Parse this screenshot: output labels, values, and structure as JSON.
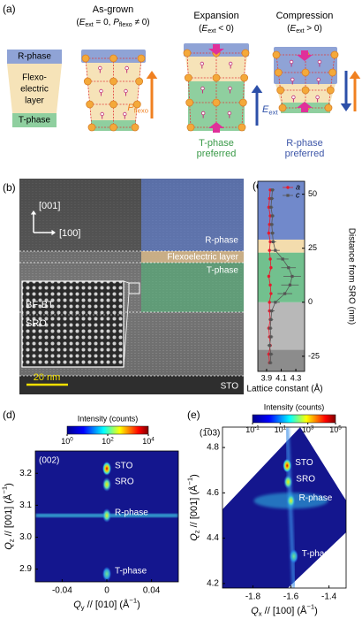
{
  "panel_a": {
    "label": "(a)",
    "legend": {
      "r_phase": "R-phase",
      "layer": [
        "Flexo-",
        "electric",
        "layer"
      ],
      "t_phase": "T-phase"
    },
    "as_grown": {
      "title": "As-grown",
      "condition": [
        "(",
        {
          "i": "E"
        },
        {
          "sub": "ext"
        },
        " = 0, ",
        {
          "i": "P"
        },
        {
          "sub": "flexo"
        },
        " ≠ 0)"
      ],
      "arrow": [
        {
          "i": "P"
        },
        {
          "sub": "flexo"
        }
      ]
    },
    "expansion": {
      "title": "Expansion",
      "condition": [
        "(",
        {
          "i": "E"
        },
        {
          "sub": "ext"
        },
        " < 0)"
      ],
      "arrow": [
        {
          "i": "E"
        },
        {
          "sub": "ext"
        }
      ],
      "result": [
        "T-phase",
        "preferred"
      ]
    },
    "compression": {
      "title": "Compression",
      "condition": [
        "(",
        {
          "i": "E"
        },
        {
          "sub": "ext"
        },
        " > 0)"
      ],
      "result": [
        "R-phase",
        "preferred"
      ]
    }
  },
  "panel_b": {
    "label": "(b)",
    "axes": [
      "[001]",
      "[100]"
    ],
    "regions": [
      "R-phase",
      "Flexoelectric layer",
      "T-phase"
    ],
    "inset": [
      "BF-BT",
      "SRO"
    ],
    "scale_bar": "20 nm",
    "substrate": "STO"
  },
  "chart_data": [
    {
      "type": "line",
      "panel": "(c)",
      "xlabel": "Lattice constant (Å)",
      "ylabel": "Distance from SRO (nm)",
      "y": [
        -28,
        -24,
        -20,
        -16,
        -12,
        -8,
        -4,
        0,
        4,
        8,
        12,
        16,
        20,
        24,
        28,
        32,
        36,
        40,
        44,
        48,
        52
      ],
      "series": [
        {
          "name": "a",
          "color": "#e8192c",
          "marker": "circle",
          "values": [
            3.94,
            3.93,
            3.95,
            3.94,
            3.93,
            3.95,
            3.94,
            3.94,
            3.96,
            3.95,
            3.93,
            3.96,
            3.95,
            3.94,
            3.95,
            3.93,
            3.94,
            3.95,
            3.93,
            3.94,
            3.95
          ]
        },
        {
          "name": "c",
          "color": "#555555",
          "marker": "square",
          "values": [
            3.95,
            3.96,
            3.94,
            3.96,
            3.95,
            3.96,
            3.97,
            4.02,
            4.15,
            4.22,
            4.25,
            4.2,
            4.12,
            4.02,
            3.99,
            3.98,
            3.97,
            3.98,
            3.96,
            3.97,
            3.98
          ],
          "errors": [
            0.03,
            0.03,
            0.03,
            0.03,
            0.03,
            0.03,
            0.04,
            0.06,
            0.1,
            0.12,
            0.12,
            0.1,
            0.08,
            0.06,
            0.04,
            0.03,
            0.03,
            0.03,
            0.03,
            0.03,
            0.03
          ]
        }
      ],
      "xlim": [
        3.78,
        4.42
      ],
      "xticks": [
        3.9,
        4.1,
        4.3
      ],
      "ylim": [
        -32,
        56
      ],
      "yticks": [
        -25,
        0,
        25,
        50
      ],
      "bands": [
        {
          "from": -32,
          "to": -22,
          "color": "#8c8c8c"
        },
        {
          "from": -22,
          "to": 0,
          "color": "#b8b8b8"
        },
        {
          "from": 0,
          "to": 23,
          "color": "#72c08e"
        },
        {
          "from": 23,
          "to": 29,
          "color": "#f3dcad"
        },
        {
          "from": 29,
          "to": 56,
          "color": "#7189cb"
        }
      ]
    },
    {
      "type": "heatmap",
      "panel": "(d)",
      "label": "(002)",
      "xlabel": [
        {
          "i": "Q"
        },
        {
          "sub": "y"
        },
        " // [010] (Å",
        {
          "sup": "−1"
        },
        ")"
      ],
      "ylabel": [
        {
          "i": "Q"
        },
        {
          "sub": "z"
        },
        " // [001] (Å",
        {
          "sup": "−1"
        },
        ")"
      ],
      "xlim": [
        -0.064,
        0.064
      ],
      "xticks": [
        -0.04,
        0,
        0.04
      ],
      "ylim": [
        2.86,
        3.27
      ],
      "yticks": [
        2.9,
        {
          "value": 3,
          "label": "3.0"
        },
        3.1,
        3.2
      ],
      "colorbar": {
        "title": "Intensity (counts)",
        "log": true,
        "lim": [
          1,
          10000
        ],
        "ticks": [
          {
            "value": 1,
            "label": [
              "10",
              {
                "sup": "0"
              }
            ]
          },
          {
            "value": 100,
            "label": [
              "10",
              {
                "sup": "2"
              }
            ]
          },
          {
            "value": 10000,
            "label": [
              "10",
              {
                "sup": "4"
              }
            ]
          }
        ]
      },
      "peaks": [
        {
          "name": "STO",
          "qx": 0,
          "qz": 3.215
        },
        {
          "name": "SRO",
          "qx": 0,
          "qz": 3.165
        },
        {
          "name": "R-phase",
          "qx": 0,
          "qz": 3.068
        },
        {
          "name": "T-phase",
          "qx": 0,
          "qz": 2.885
        }
      ]
    },
    {
      "type": "heatmap",
      "panel": "(e)",
      "label": "(1̅03)",
      "xlabel": [
        {
          "i": "Q"
        },
        {
          "sub": "x"
        },
        " // [100] (Å",
        {
          "sup": "−1"
        },
        ")"
      ],
      "ylabel": [
        {
          "i": "Q"
        },
        {
          "sub": "z"
        },
        " // [001] (Å",
        {
          "sup": "−1"
        },
        ")"
      ],
      "xlim": [
        -1.96,
        -1.31
      ],
      "xticks": [
        -1.8,
        -1.6,
        -1.4
      ],
      "ylim": [
        4.18,
        4.89
      ],
      "yticks": [
        4.2,
        4.4,
        4.6,
        4.8
      ],
      "colorbar": {
        "title": "Intensity (counts)",
        "log": true,
        "lim": [
          0.1,
          100000
        ],
        "ticks": [
          {
            "value": 0.1,
            "label": [
              "10",
              {
                "sup": "-1"
              }
            ]
          },
          {
            "value": 10,
            "label": [
              "10",
              {
                "sup": "1"
              }
            ]
          },
          {
            "value": 1000,
            "label": [
              "10",
              {
                "sup": "3"
              }
            ]
          },
          {
            "value": 100000,
            "label": [
              "10",
              {
                "sup": "5"
              }
            ]
          }
        ]
      },
      "peaks": [
        {
          "name": "STO",
          "qx": -1.62,
          "qz": 4.72
        },
        {
          "name": "SRO",
          "qx": -1.615,
          "qz": 4.648
        },
        {
          "name": "R-phase",
          "qx": -1.6,
          "qz": 4.565
        },
        {
          "name": "T-phase",
          "qx": -1.585,
          "qz": 4.32
        }
      ]
    }
  ]
}
